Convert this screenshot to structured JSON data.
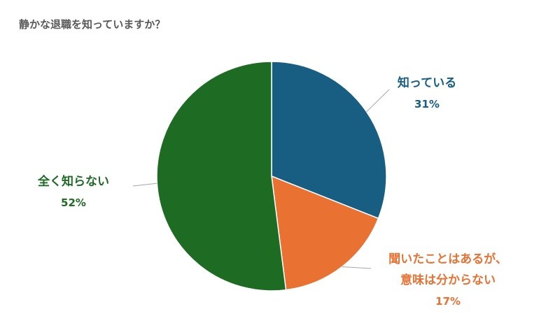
{
  "chart_data": {
    "type": "pie",
    "title": "静かな退職を知っていますか？",
    "slices": [
      {
        "label": "知っている",
        "label_lines": [
          "知っている"
        ],
        "value": 31,
        "value_label": "31%",
        "color": "#175e82"
      },
      {
        "label": "聞いたことはあるが、意味は分からない",
        "label_lines": [
          "聞いたことはあるが、",
          "意味は分からない"
        ],
        "value": 17,
        "value_label": "17%",
        "color": "#e97132"
      },
      {
        "label": "全く知らない",
        "label_lines": [
          "全く知らない"
        ],
        "value": 52,
        "value_label": "52%",
        "color": "#1e6b24"
      }
    ],
    "legend": "none",
    "start_angle": "12 o'clock",
    "direction": "clockwise"
  }
}
